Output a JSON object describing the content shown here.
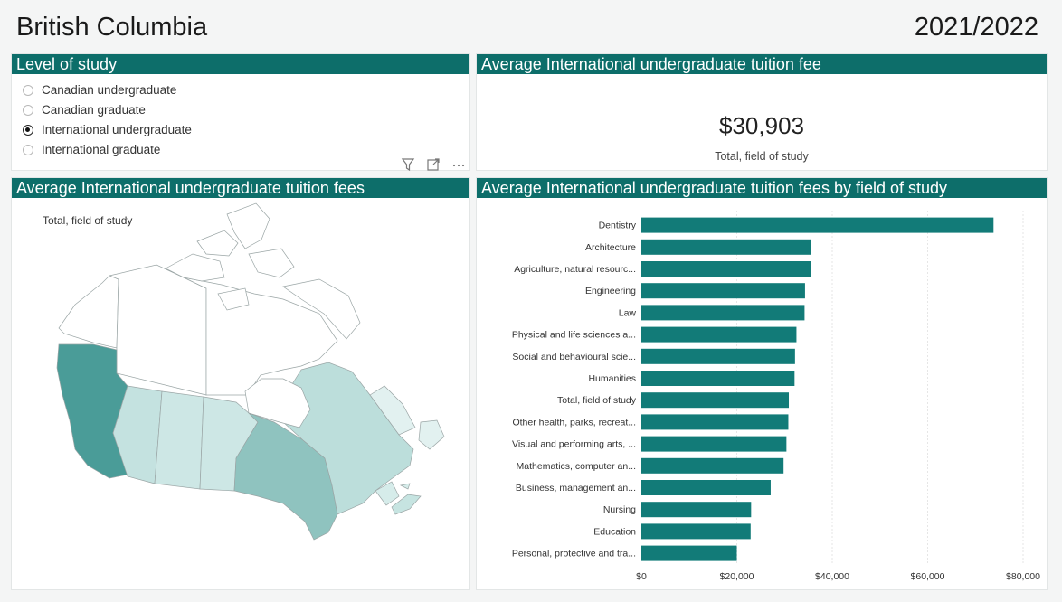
{
  "header": {
    "province": "British Columbia",
    "year": "2021/2022"
  },
  "slicer": {
    "title": "Level of study",
    "options": [
      {
        "label": "Canadian undergraduate",
        "selected": false
      },
      {
        "label": "Canadian graduate",
        "selected": false
      },
      {
        "label": "International undergraduate",
        "selected": true
      },
      {
        "label": "International graduate",
        "selected": false
      }
    ]
  },
  "kpi": {
    "title": "Average International undergraduate tuition fee",
    "value": "$30,903",
    "subtitle": "Total, field of study"
  },
  "map": {
    "title": "Average International undergraduate tuition fees",
    "subtitle": "Total, field of study"
  },
  "chart_card": {
    "title": "Average International undergraduate tuition fees by field of study"
  },
  "colors": {
    "accent": "#0d6e6a",
    "bar": "#127b78"
  },
  "icons": [
    "filter-icon",
    "focus-mode-icon",
    "more-options-icon"
  ],
  "chart_data": {
    "type": "bar",
    "orientation": "horizontal",
    "categories": [
      "Dentistry",
      "Architecture",
      "Agriculture, natural resourc...",
      "Engineering",
      "Law",
      "Physical and life sciences a...",
      "Social and behavioural scie...",
      "Humanities",
      "Total, field of study",
      "Other health, parks, recreat...",
      "Visual and performing arts, ...",
      "Mathematics, computer an...",
      "Business, management an...",
      "Nursing",
      "Education",
      "Personal, protective and tra..."
    ],
    "values": [
      73800,
      35500,
      35500,
      34300,
      34200,
      32500,
      32200,
      32100,
      30903,
      30800,
      30400,
      29800,
      27100,
      23000,
      22900,
      20000
    ],
    "xlim": [
      0,
      80000
    ],
    "xticks": [
      "$0",
      "$20,000",
      "$40,000",
      "$60,000",
      "$80,000"
    ],
    "tick_values": [
      0,
      20000,
      40000,
      60000,
      80000
    ],
    "grid": true
  }
}
